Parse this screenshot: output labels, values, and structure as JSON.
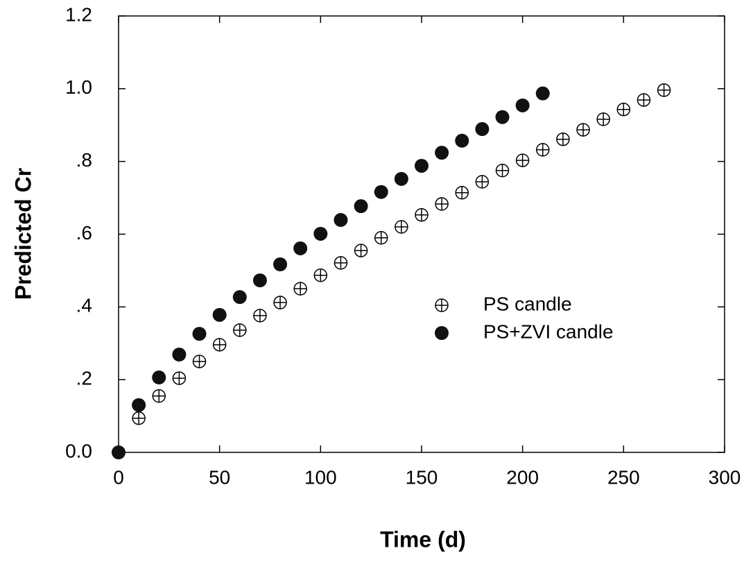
{
  "chart_data": {
    "type": "scatter",
    "xlabel": "Time (d)",
    "ylabel": "Predicted Cr",
    "xlim": [
      0,
      300
    ],
    "ylim": [
      0,
      1.2
    ],
    "xticks": [
      0,
      50,
      100,
      150,
      200,
      250,
      300
    ],
    "yticks": [
      {
        "value": 0,
        "label": "0.0"
      },
      {
        "value": 0.2,
        "label": ".2"
      },
      {
        "value": 0.4,
        "label": ".4"
      },
      {
        "value": 0.6,
        "label": ".6"
      },
      {
        "value": 0.8,
        "label": ".8"
      },
      {
        "value": 1.0,
        "label": "1.0"
      },
      1.2
    ],
    "legend": "center-right",
    "series": [
      {
        "name": "PS candle",
        "marker": "crosshair",
        "color": "#000000",
        "x": [
          0,
          10,
          20,
          30,
          40,
          50,
          60,
          70,
          80,
          90,
          100,
          110,
          120,
          130,
          140,
          150,
          160,
          170,
          180,
          190,
          200,
          210,
          220,
          230,
          240,
          250,
          260,
          270
        ],
        "values": [
          0,
          0.094,
          0.155,
          0.204,
          0.25,
          0.296,
          0.336,
          0.376,
          0.412,
          0.45,
          0.487,
          0.521,
          0.555,
          0.59,
          0.62,
          0.653,
          0.683,
          0.714,
          0.744,
          0.775,
          0.803,
          0.832,
          0.861,
          0.887,
          0.916,
          0.943,
          0.969,
          0.996
        ]
      },
      {
        "name": "PS+ZVI candle",
        "marker": "filled",
        "color": "#111111",
        "x": [
          0,
          10,
          20,
          30,
          40,
          50,
          60,
          70,
          80,
          90,
          100,
          110,
          120,
          130,
          140,
          150,
          160,
          170,
          180,
          190,
          200,
          210
        ],
        "values": [
          0,
          0.13,
          0.206,
          0.269,
          0.326,
          0.378,
          0.427,
          0.473,
          0.517,
          0.561,
          0.601,
          0.639,
          0.677,
          0.716,
          0.752,
          0.788,
          0.824,
          0.857,
          0.889,
          0.922,
          0.954,
          0.987
        ]
      }
    ]
  }
}
